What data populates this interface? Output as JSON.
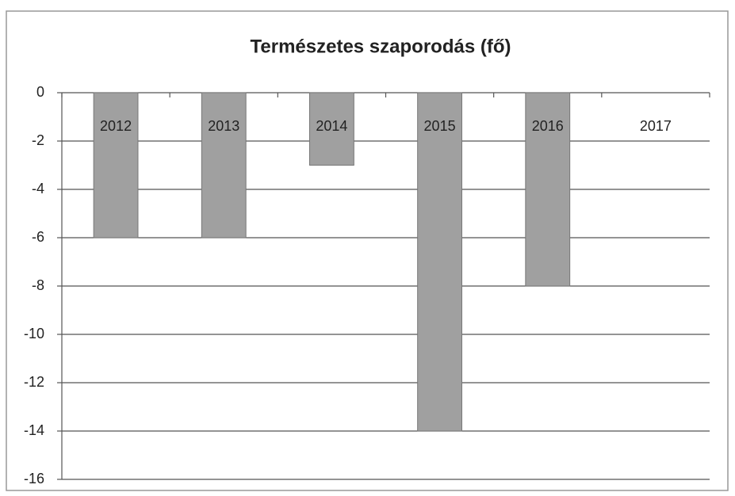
{
  "chart_data": {
    "type": "bar",
    "title": "Természetes szaporodás (fő)",
    "categories": [
      "2012",
      "2013",
      "2014",
      "2015",
      "2016",
      "2017"
    ],
    "values": [
      -6,
      -6,
      -3,
      -14,
      -8,
      0
    ],
    "color": "#a0a0a0",
    "ylim": [
      -16,
      0
    ],
    "yticks": [
      0,
      -2,
      -4,
      -6,
      -8,
      -10,
      -12,
      -14,
      -16
    ],
    "grid": true
  }
}
